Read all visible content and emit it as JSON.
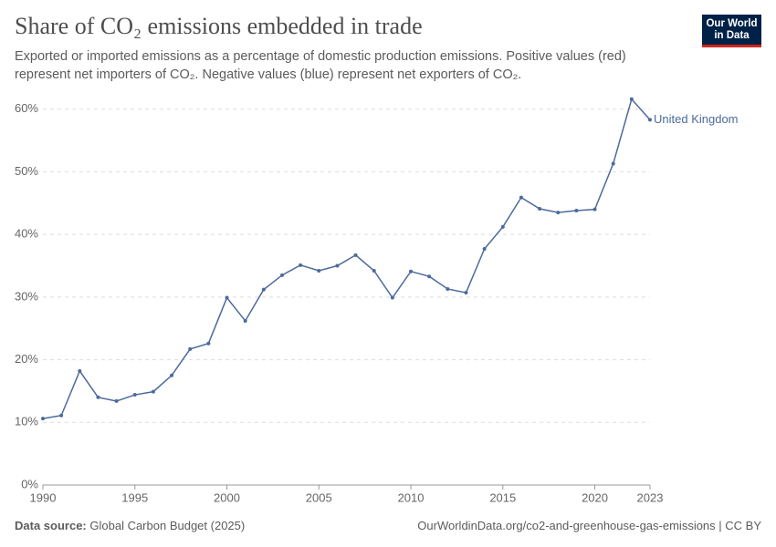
{
  "chart_data": {
    "type": "line",
    "title": "Share of CO₂ emissions embedded in trade",
    "subtitle": "Exported or imported emissions as a percentage of domestic production emissions. Positive values (red) represent net importers of CO₂. Negative values (blue) represent net exporters of CO₂.",
    "logo": [
      "Our World",
      "in Data"
    ],
    "source_label": "Data source:",
    "source": "Global Carbon Budget (2025)",
    "footer_right": "OurWorldinData.org/co2-and-greenhouse-gas-emissions | CC BY",
    "x": [
      1990,
      1991,
      1992,
      1993,
      1994,
      1995,
      1996,
      1997,
      1998,
      1999,
      2000,
      2001,
      2002,
      2003,
      2004,
      2005,
      2006,
      2007,
      2008,
      2009,
      2010,
      2011,
      2012,
      2013,
      2014,
      2015,
      2016,
      2017,
      2018,
      2019,
      2020,
      2021,
      2022,
      2023
    ],
    "series": [
      {
        "name": "United Kingdom",
        "color": "#4c6a9c",
        "values": [
          10.6,
          11.1,
          18.2,
          14.0,
          13.4,
          14.4,
          14.9,
          17.5,
          21.7,
          22.6,
          29.9,
          26.2,
          31.2,
          33.5,
          35.1,
          34.2,
          35.0,
          36.7,
          34.2,
          29.9,
          34.1,
          33.3,
          31.3,
          30.7,
          37.7,
          41.2,
          45.9,
          44.1,
          43.5,
          43.8,
          44.0,
          51.3,
          61.6,
          58.3
        ]
      }
    ],
    "xlim": [
      1990,
      2023
    ],
    "xticks": [
      1990,
      1995,
      2000,
      2005,
      2010,
      2015,
      2020,
      2023
    ],
    "ylim": [
      0,
      62
    ],
    "yticks": [
      {
        "value": 0,
        "label": "0%"
      },
      {
        "value": 10,
        "label": "10%"
      },
      {
        "value": 20,
        "label": "20%"
      },
      {
        "value": 30,
        "label": "30%"
      },
      {
        "value": 40,
        "label": "40%"
      },
      {
        "value": 50,
        "label": "50%"
      },
      {
        "value": 60,
        "label": "60%"
      }
    ],
    "grid": true
  }
}
